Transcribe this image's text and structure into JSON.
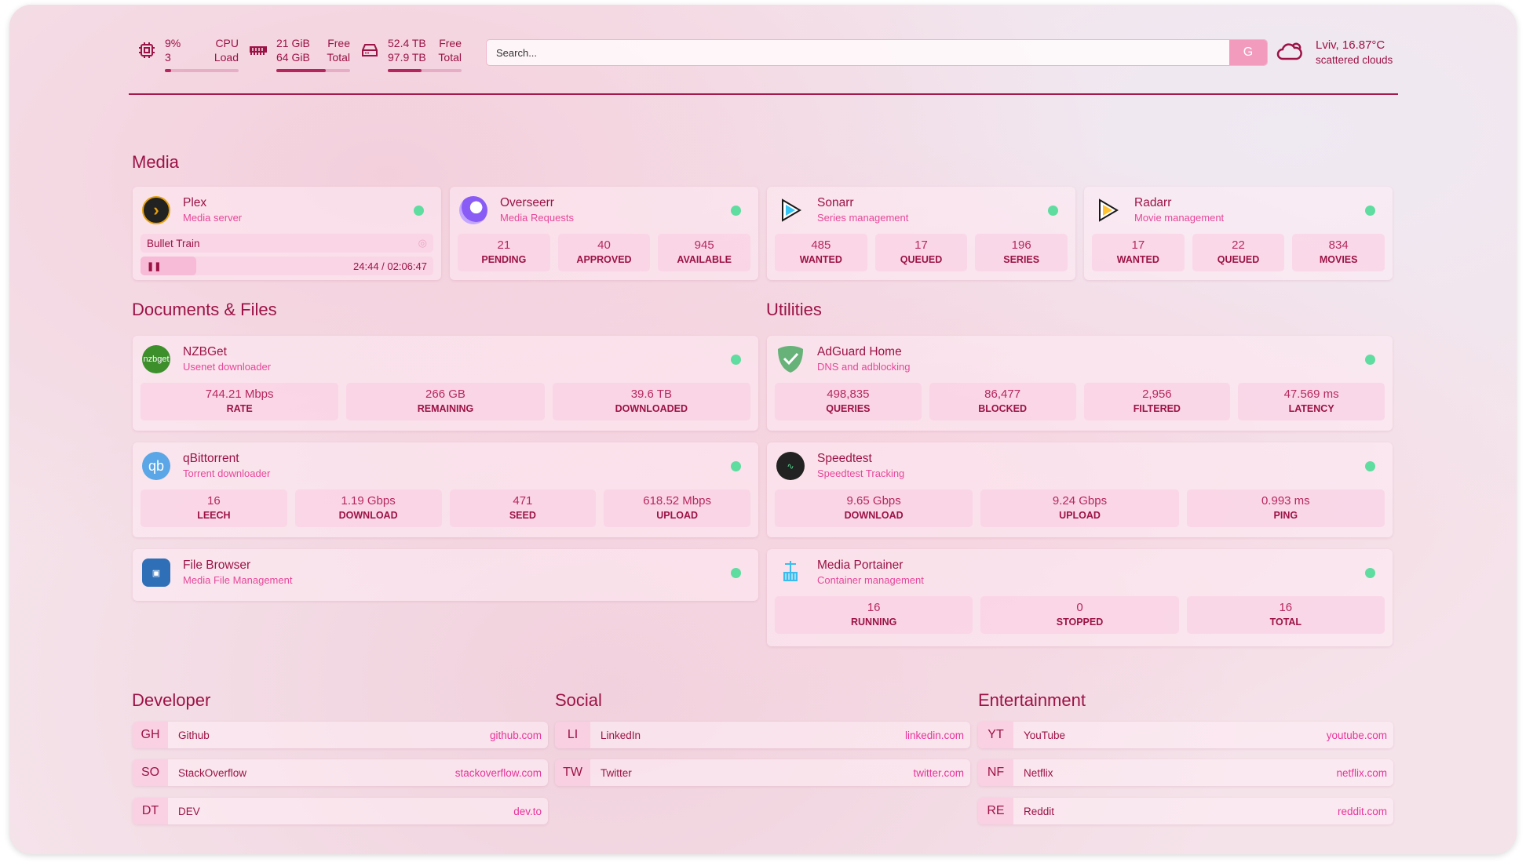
{
  "colors": {
    "text": "#9c1245",
    "accent": "#e6479a",
    "status_online": "#5fdca0"
  },
  "resources": {
    "cpu": {
      "icon": "cpu-icon",
      "value": "9%",
      "value2": "3",
      "label": "CPU",
      "label2": "Load",
      "percent": 9
    },
    "memory": {
      "icon": "memory-icon",
      "value": "21 GiB",
      "value2": "64 GiB",
      "label": "Free",
      "label2": "Total",
      "percent": 67
    },
    "disk": {
      "icon": "disk-icon",
      "value": "52.4 TB",
      "value2": "97.9 TB",
      "label": "Free",
      "label2": "Total",
      "percent": 46
    }
  },
  "search": {
    "placeholder": "Search...",
    "provider": "G"
  },
  "weather": {
    "icon": "cloud-icon",
    "location": "Lviv, 16.87°C",
    "condition": "scattered clouds"
  },
  "sections": {
    "media": "Media",
    "docs": "Documents & Files",
    "utilities": "Utilities",
    "developer": "Developer",
    "social": "Social",
    "entertainment": "Entertainment"
  },
  "plex": {
    "name": "Plex",
    "desc": "Media server",
    "now_playing": "Bullet Train",
    "time": "24:44 / 02:06:47",
    "progress_percent": 19
  },
  "services": [
    {
      "key": "overseerr",
      "name": "Overseerr",
      "desc": "Media Requests",
      "stats": [
        {
          "v": "21",
          "l": "PENDING"
        },
        {
          "v": "40",
          "l": "APPROVED"
        },
        {
          "v": "945",
          "l": "AVAILABLE"
        }
      ]
    },
    {
      "key": "sonarr",
      "name": "Sonarr",
      "desc": "Series management",
      "stats": [
        {
          "v": "485",
          "l": "WANTED"
        },
        {
          "v": "17",
          "l": "QUEUED"
        },
        {
          "v": "196",
          "l": "SERIES"
        }
      ]
    },
    {
      "key": "radarr",
      "name": "Radarr",
      "desc": "Movie management",
      "stats": [
        {
          "v": "17",
          "l": "WANTED"
        },
        {
          "v": "22",
          "l": "QUEUED"
        },
        {
          "v": "834",
          "l": "MOVIES"
        }
      ]
    },
    {
      "key": "nzbget",
      "name": "NZBGet",
      "desc": "Usenet downloader",
      "stats": [
        {
          "v": "744.21 Mbps",
          "l": "RATE"
        },
        {
          "v": "266 GB",
          "l": "REMAINING"
        },
        {
          "v": "39.6 TB",
          "l": "DOWNLOADED"
        }
      ]
    },
    {
      "key": "qbittorrent",
      "name": "qBittorrent",
      "desc": "Torrent downloader",
      "stats": [
        {
          "v": "16",
          "l": "LEECH"
        },
        {
          "v": "1.19 Gbps",
          "l": "DOWNLOAD"
        },
        {
          "v": "471",
          "l": "SEED"
        },
        {
          "v": "618.52 Mbps",
          "l": "UPLOAD"
        }
      ]
    },
    {
      "key": "filebrowser",
      "name": "File Browser",
      "desc": "Media File Management",
      "stats": []
    },
    {
      "key": "adguard",
      "name": "AdGuard Home",
      "desc": "DNS and adblocking",
      "stats": [
        {
          "v": "498,835",
          "l": "QUERIES"
        },
        {
          "v": "86,477",
          "l": "BLOCKED"
        },
        {
          "v": "2,956",
          "l": "FILTERED"
        },
        {
          "v": "47.569 ms",
          "l": "LATENCY"
        }
      ]
    },
    {
      "key": "speedtest",
      "name": "Speedtest",
      "desc": "Speedtest Tracking",
      "stats": [
        {
          "v": "9.65 Gbps",
          "l": "DOWNLOAD"
        },
        {
          "v": "9.24 Gbps",
          "l": "UPLOAD"
        },
        {
          "v": "0.993 ms",
          "l": "PING"
        }
      ]
    },
    {
      "key": "portainer",
      "name": "Media Portainer",
      "desc": "Container management",
      "stats": [
        {
          "v": "16",
          "l": "RUNNING"
        },
        {
          "v": "0",
          "l": "STOPPED"
        },
        {
          "v": "16",
          "l": "TOTAL"
        }
      ]
    }
  ],
  "bookmarks": [
    [
      {
        "abbr": "GH",
        "name": "Github",
        "url": "github.com"
      },
      {
        "abbr": "SO",
        "name": "StackOverflow",
        "url": "stackoverflow.com"
      },
      {
        "abbr": "DT",
        "name": "DEV",
        "url": "dev.to"
      }
    ],
    [
      {
        "abbr": "LI",
        "name": "LinkedIn",
        "url": "linkedin.com"
      },
      {
        "abbr": "TW",
        "name": "Twitter",
        "url": "twitter.com"
      }
    ],
    [
      {
        "abbr": "YT",
        "name": "YouTube",
        "url": "youtube.com"
      },
      {
        "abbr": "NF",
        "name": "Netflix",
        "url": "netflix.com"
      },
      {
        "abbr": "RE",
        "name": "Reddit",
        "url": "reddit.com"
      }
    ]
  ]
}
